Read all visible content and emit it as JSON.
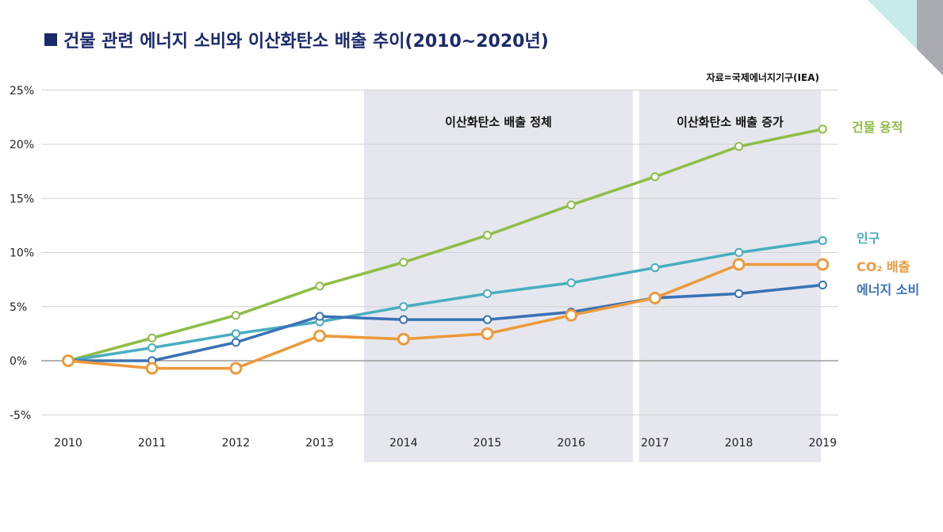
{
  "page": {
    "title": "건물 관련 에너지 소비와 이산화탄소 배출 추이(2010~2020년)",
    "source": "자료=국제에너지기구(IEA)"
  },
  "chart_data": {
    "type": "line",
    "title": "건물 관련 에너지 소비와 이산화탄소 배출 추이(2010~2020년)",
    "x": [
      2010,
      2011,
      2012,
      2013,
      2014,
      2015,
      2016,
      2017,
      2018,
      2019
    ],
    "x_tick_labels": [
      "2010",
      "2011",
      "2012",
      "2013",
      "2014",
      "2015",
      "2016",
      "2017",
      "2018",
      "2019"
    ],
    "y_ticks": [
      -5,
      0,
      5,
      10,
      15,
      20,
      25
    ],
    "y_tick_labels": [
      "-5%",
      "0%",
      "5%",
      "10%",
      "15%",
      "20%",
      "25%"
    ],
    "ylim": [
      -5,
      25
    ],
    "grid": "horizontal",
    "bands": [
      {
        "label": "이산화탄소 배출 정체",
        "from": 2013.5,
        "to": 2016.75
      },
      {
        "label": "이산화탄소 배출 증가",
        "from": 2016.8,
        "to": 2019
      }
    ],
    "series": [
      {
        "name": "건물 용적",
        "color": "#8fbd48",
        "values": [
          0,
          2.1,
          4.2,
          6.9,
          9.1,
          11.6,
          14.4,
          17.0,
          19.8,
          21.4
        ]
      },
      {
        "name": "인구",
        "color": "#4aaebf",
        "values": [
          0,
          1.2,
          2.5,
          3.6,
          5.0,
          6.2,
          7.2,
          8.6,
          10.0,
          11.1
        ]
      },
      {
        "name": "에너지 소비",
        "color": "#3a72b6",
        "values": [
          0,
          0,
          1.7,
          4.1,
          3.8,
          3.8,
          4.5,
          5.8,
          6.2,
          7.0
        ]
      },
      {
        "name": "CO₂ 배출",
        "color": "#ec9a3c",
        "values": [
          0,
          -0.7,
          -0.7,
          2.3,
          2.0,
          2.5,
          4.2,
          5.8,
          8.9,
          8.9
        ]
      }
    ]
  }
}
